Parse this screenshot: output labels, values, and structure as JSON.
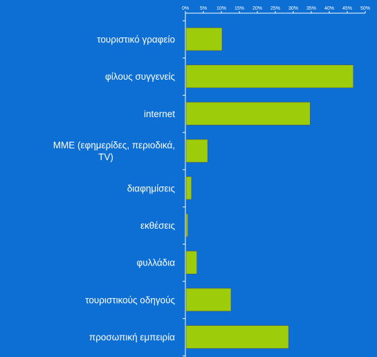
{
  "chart_data": {
    "type": "bar",
    "orientation": "horizontal",
    "categories": [
      "τουριστικό γραφείο",
      "φίλους συγγενείς",
      "internet",
      "ΜΜΕ (εφημερίδες, περιοδικά, TV)",
      "διαφημίσεις",
      "εκθέσεις",
      "φυλλάδια",
      "τουριστικούς οδηγούς",
      "προσωπική εμπειρία"
    ],
    "values": [
      10,
      46.5,
      34.5,
      6,
      1.5,
      0.5,
      3,
      12.5,
      28.5
    ],
    "x_ticks": [
      "0%",
      "5%",
      "10%",
      "15%",
      "20%",
      "25%",
      "30%",
      "35%",
      "40%",
      "45%",
      "50%"
    ],
    "xlim": [
      0,
      50
    ],
    "x_axis_position": "top",
    "grid": false,
    "legend": "none",
    "colors": {
      "background": "#0d6fd3",
      "bar": "#9ccc0a",
      "bar_border": "#555555",
      "axis": "#ffffff",
      "text": "#ffffff"
    }
  }
}
